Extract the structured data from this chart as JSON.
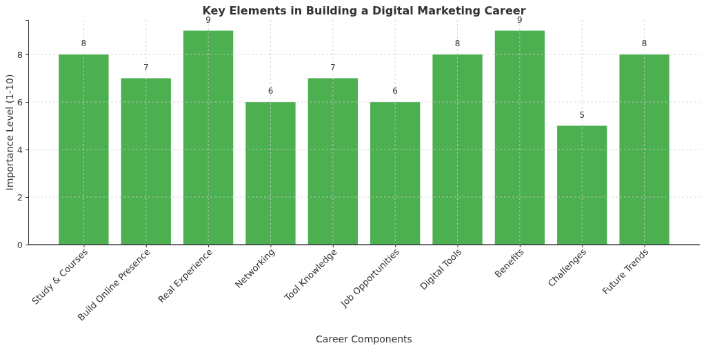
{
  "chart_data": {
    "type": "bar",
    "title": "Key Elements in Building a Digital Marketing Career",
    "xlabel": "Career Components",
    "ylabel": "Importance Level (1-10)",
    "categories": [
      "Study & Courses",
      "Build Online Presence",
      "Real Experience",
      "Networking",
      "Tool Knowledge",
      "Job Opportunities",
      "Digital Tools",
      "Benefits",
      "Challenges",
      "Future Trends"
    ],
    "values": [
      8,
      7,
      9,
      6,
      7,
      6,
      8,
      9,
      5,
      8
    ],
    "color": "#4caf50",
    "ylim": [
      0,
      9.45
    ],
    "yticks": [
      0,
      2,
      4,
      6,
      8
    ],
    "grid": true,
    "data_labels": true
  }
}
